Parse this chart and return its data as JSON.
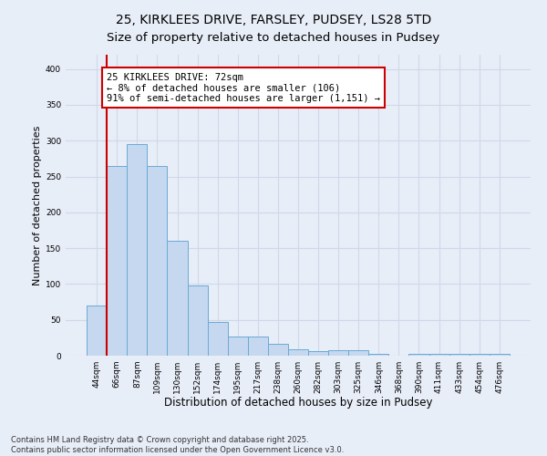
{
  "title_line1": "25, KIRKLEES DRIVE, FARSLEY, PUDSEY, LS28 5TD",
  "title_line2": "Size of property relative to detached houses in Pudsey",
  "xlabel": "Distribution of detached houses by size in Pudsey",
  "ylabel": "Number of detached properties",
  "categories": [
    "44sqm",
    "66sqm",
    "87sqm",
    "109sqm",
    "130sqm",
    "152sqm",
    "174sqm",
    "195sqm",
    "217sqm",
    "238sqm",
    "260sqm",
    "282sqm",
    "303sqm",
    "325sqm",
    "346sqm",
    "368sqm",
    "390sqm",
    "411sqm",
    "433sqm",
    "454sqm",
    "476sqm"
  ],
  "values": [
    70,
    265,
    295,
    265,
    160,
    98,
    47,
    27,
    27,
    16,
    9,
    7,
    8,
    8,
    2,
    0,
    3,
    3,
    3,
    3,
    3
  ],
  "bar_color": "#c5d8f0",
  "bar_edge_color": "#6aaad4",
  "grid_color": "#d0d8e8",
  "vline_x": 1,
  "vline_color": "#cc0000",
  "annotation_text": "25 KIRKLEES DRIVE: 72sqm\n← 8% of detached houses are smaller (106)\n91% of semi-detached houses are larger (1,151) →",
  "annotation_box_color": "white",
  "annotation_box_edgecolor": "#cc0000",
  "annotation_fontsize": 7.5,
  "ylim": [
    0,
    420
  ],
  "yticks": [
    0,
    50,
    100,
    150,
    200,
    250,
    300,
    350,
    400
  ],
  "footer_text": "Contains HM Land Registry data © Crown copyright and database right 2025.\nContains public sector information licensed under the Open Government Licence v3.0.",
  "background_color": "#e8eef8",
  "title_fontsize": 10,
  "xlabel_fontsize": 8.5,
  "ylabel_fontsize": 8
}
